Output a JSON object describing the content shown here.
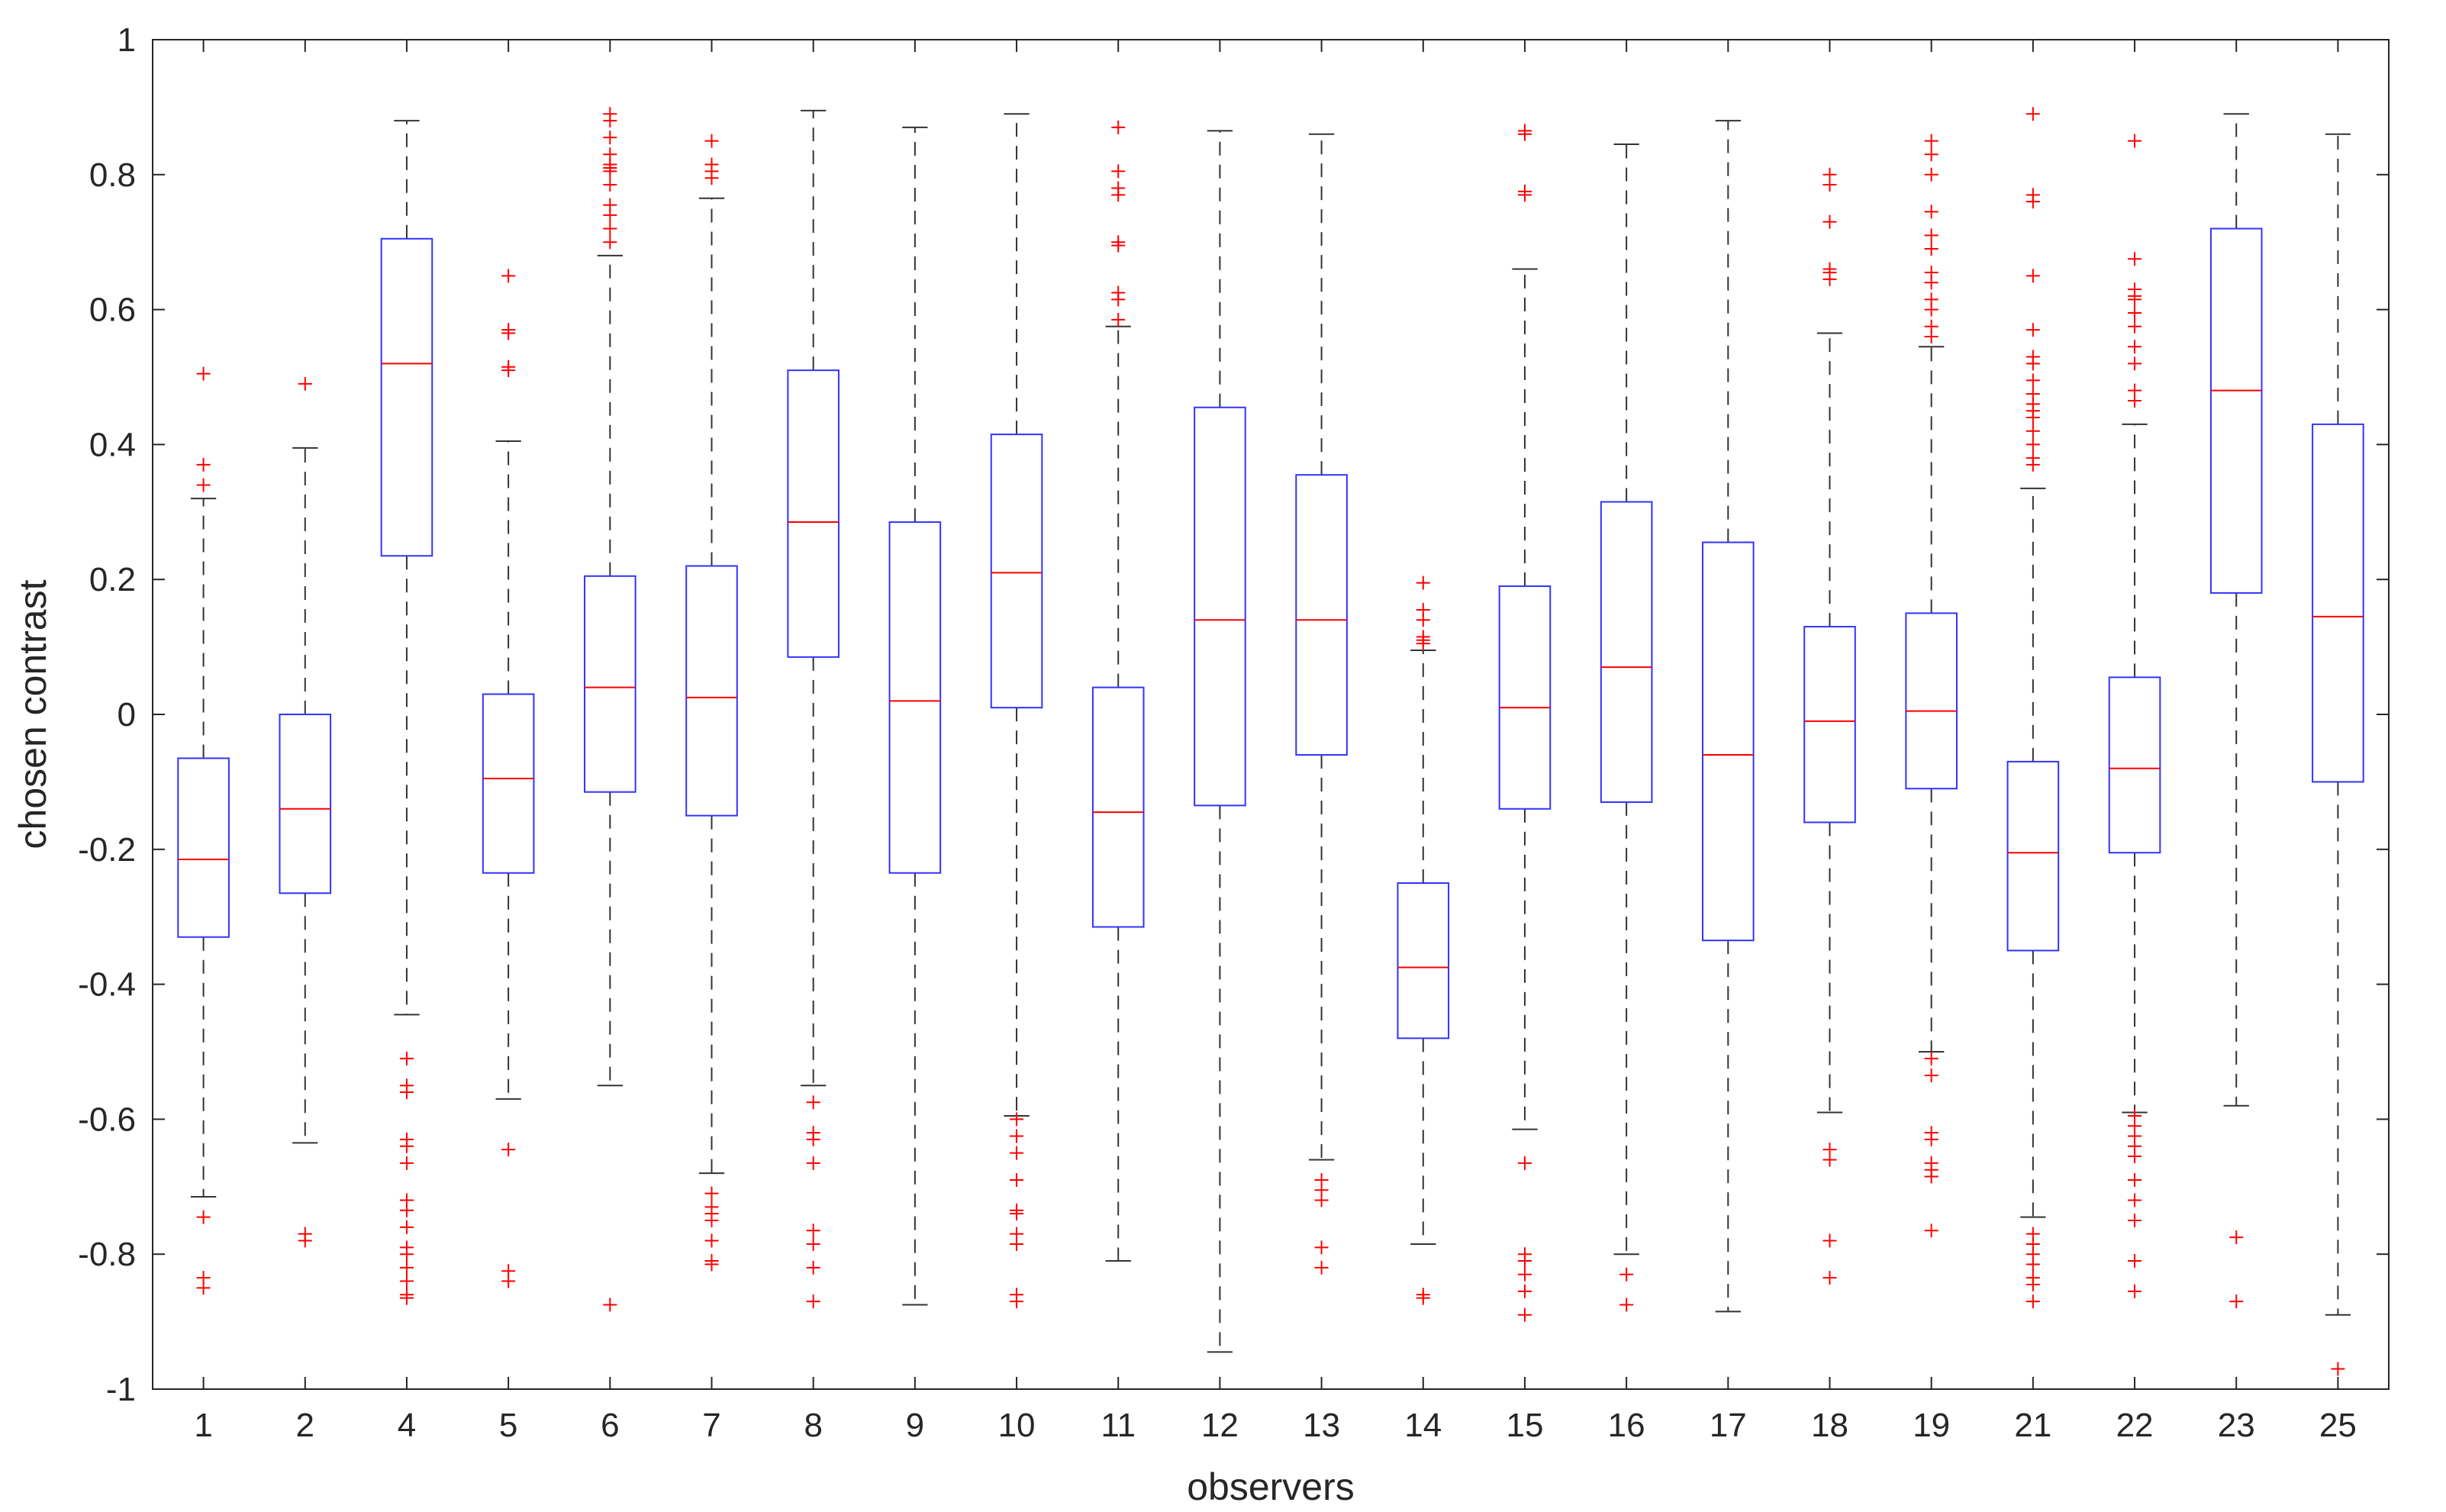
{
  "chart_data": {
    "type": "box",
    "xlabel": "observers",
    "ylabel": "chosen contrast",
    "ylim": [
      -1,
      1
    ],
    "yticks": [
      "-1",
      "-0.8",
      "-0.6",
      "-0.4",
      "-0.2",
      "0",
      "0.2",
      "0.4",
      "0.6",
      "0.8",
      "1"
    ],
    "grid": false,
    "colors": {
      "box": "#3333ff",
      "median": "#ff0000",
      "whisker": "#333333",
      "outlier": "#ff0000",
      "axis": "#262626"
    },
    "categories": [
      "1",
      "2",
      "4",
      "5",
      "6",
      "7",
      "8",
      "9",
      "10",
      "11",
      "12",
      "13",
      "14",
      "15",
      "16",
      "17",
      "18",
      "19",
      "21",
      "22",
      "23",
      "25"
    ],
    "boxes": [
      {
        "label": "1",
        "q1": -0.33,
        "median": -0.215,
        "q3": -0.065,
        "whisker_low": -0.715,
        "whisker_high": 0.32,
        "outliers": [
          0.505,
          0.37,
          0.34,
          -0.745,
          -0.835,
          -0.85
        ]
      },
      {
        "label": "2",
        "q1": -0.265,
        "median": -0.14,
        "q3": 0.0,
        "whisker_low": -0.635,
        "whisker_high": 0.395,
        "outliers": [
          0.49,
          -0.77,
          -0.78
        ]
      },
      {
        "label": "4",
        "q1": 0.235,
        "median": 0.52,
        "q3": 0.705,
        "whisker_low": -0.445,
        "whisker_high": 0.88,
        "outliers": [
          -0.51,
          -0.55,
          -0.56,
          -0.63,
          -0.64,
          -0.665,
          -0.72,
          -0.735,
          -0.76,
          -0.79,
          -0.8,
          -0.82,
          -0.84,
          -0.86,
          -0.865
        ]
      },
      {
        "label": "5",
        "q1": -0.235,
        "median": -0.095,
        "q3": 0.03,
        "whisker_low": -0.57,
        "whisker_high": 0.405,
        "outliers": [
          0.65,
          0.57,
          0.565,
          0.515,
          0.51,
          -0.645,
          -0.825,
          -0.84
        ]
      },
      {
        "label": "6",
        "q1": -0.115,
        "median": 0.04,
        "q3": 0.205,
        "whisker_low": -0.55,
        "whisker_high": 0.68,
        "outliers": [
          0.89,
          0.88,
          0.855,
          0.83,
          0.815,
          0.81,
          0.805,
          0.785,
          0.755,
          0.74,
          0.72,
          0.7,
          -0.875
        ]
      },
      {
        "label": "7",
        "q1": -0.15,
        "median": 0.025,
        "q3": 0.22,
        "whisker_low": -0.68,
        "whisker_high": 0.765,
        "outliers": [
          0.85,
          0.815,
          0.805,
          0.795,
          -0.71,
          -0.73,
          -0.74,
          -0.75,
          -0.78,
          -0.81,
          -0.815
        ]
      },
      {
        "label": "8",
        "q1": 0.085,
        "median": 0.285,
        "q3": 0.51,
        "whisker_low": -0.55,
        "whisker_high": 0.895,
        "outliers": [
          -0.575,
          -0.62,
          -0.63,
          -0.665,
          -0.765,
          -0.785,
          -0.82,
          -0.87
        ]
      },
      {
        "label": "9",
        "q1": -0.235,
        "median": 0.02,
        "q3": 0.285,
        "whisker_low": -0.875,
        "whisker_high": 0.87,
        "outliers": []
      },
      {
        "label": "10",
        "q1": 0.01,
        "median": 0.21,
        "q3": 0.415,
        "whisker_low": -0.595,
        "whisker_high": 0.89,
        "outliers": [
          -0.6,
          -0.625,
          -0.65,
          -0.69,
          -0.735,
          -0.74,
          -0.77,
          -0.785,
          -0.86,
          -0.87
        ]
      },
      {
        "label": "11",
        "q1": -0.315,
        "median": -0.145,
        "q3": 0.04,
        "whisker_low": -0.81,
        "whisker_high": 0.575,
        "outliers": [
          0.87,
          0.805,
          0.78,
          0.77,
          0.7,
          0.695,
          0.625,
          0.615,
          0.585
        ]
      },
      {
        "label": "12",
        "q1": -0.135,
        "median": 0.14,
        "q3": 0.455,
        "whisker_low": -0.945,
        "whisker_high": 0.865,
        "outliers": []
      },
      {
        "label": "13",
        "q1": -0.06,
        "median": 0.14,
        "q3": 0.355,
        "whisker_low": -0.66,
        "whisker_high": 0.86,
        "outliers": [
          -0.69,
          -0.705,
          -0.72,
          -0.79,
          -0.82
        ]
      },
      {
        "label": "14",
        "q1": -0.48,
        "median": -0.375,
        "q3": -0.25,
        "whisker_low": -0.785,
        "whisker_high": 0.095,
        "outliers": [
          0.195,
          0.155,
          0.14,
          0.115,
          0.11,
          0.105,
          -0.86,
          -0.865
        ]
      },
      {
        "label": "15",
        "q1": -0.14,
        "median": 0.01,
        "q3": 0.19,
        "whisker_low": -0.615,
        "whisker_high": 0.66,
        "outliers": [
          0.865,
          0.86,
          0.775,
          0.77,
          -0.665,
          -0.8,
          -0.81,
          -0.83,
          -0.855,
          -0.89
        ]
      },
      {
        "label": "16",
        "q1": -0.13,
        "median": 0.07,
        "q3": 0.315,
        "whisker_low": -0.8,
        "whisker_high": 0.845,
        "outliers": [
          -0.83,
          -0.875
        ]
      },
      {
        "label": "17",
        "q1": -0.335,
        "median": -0.06,
        "q3": 0.255,
        "whisker_low": -0.885,
        "whisker_high": 0.88,
        "outliers": []
      },
      {
        "label": "18",
        "q1": -0.16,
        "median": -0.01,
        "q3": 0.13,
        "whisker_low": -0.59,
        "whisker_high": 0.565,
        "outliers": [
          0.8,
          0.785,
          0.73,
          0.66,
          0.655,
          0.645,
          -0.645,
          -0.66,
          -0.78,
          -0.835
        ]
      },
      {
        "label": "19",
        "q1": -0.11,
        "median": 0.005,
        "q3": 0.15,
        "whisker_low": -0.5,
        "whisker_high": 0.545,
        "outliers": [
          0.85,
          0.83,
          0.8,
          0.745,
          0.71,
          0.69,
          0.655,
          0.64,
          0.615,
          0.6,
          0.575,
          0.56,
          -0.51,
          -0.535,
          -0.62,
          -0.63,
          -0.665,
          -0.675,
          -0.685,
          -0.765
        ]
      },
      {
        "label": "21",
        "q1": -0.35,
        "median": -0.205,
        "q3": -0.07,
        "whisker_low": -0.745,
        "whisker_high": 0.335,
        "outliers": [
          0.89,
          0.77,
          0.76,
          0.65,
          0.57,
          0.53,
          0.52,
          0.495,
          0.475,
          0.46,
          0.45,
          0.44,
          0.42,
          0.4,
          0.38,
          0.37,
          -0.77,
          -0.785,
          -0.8,
          -0.815,
          -0.835,
          -0.845,
          -0.87
        ]
      },
      {
        "label": "22",
        "q1": -0.205,
        "median": -0.08,
        "q3": 0.055,
        "whisker_low": -0.59,
        "whisker_high": 0.43,
        "outliers": [
          0.85,
          0.675,
          0.63,
          0.62,
          0.615,
          0.595,
          0.575,
          0.545,
          0.52,
          0.48,
          0.465,
          -0.595,
          -0.61,
          -0.625,
          -0.64,
          -0.655,
          -0.69,
          -0.72,
          -0.75,
          -0.81,
          -0.855
        ]
      },
      {
        "label": "23",
        "q1": 0.18,
        "median": 0.48,
        "q3": 0.72,
        "whisker_low": -0.58,
        "whisker_high": 0.89,
        "outliers": [
          -0.775,
          -0.87
        ]
      },
      {
        "label": "25",
        "q1": -0.1,
        "median": 0.145,
        "q3": 0.43,
        "whisker_low": -0.89,
        "whisker_high": 0.86,
        "outliers": [
          -0.97
        ]
      }
    ]
  }
}
